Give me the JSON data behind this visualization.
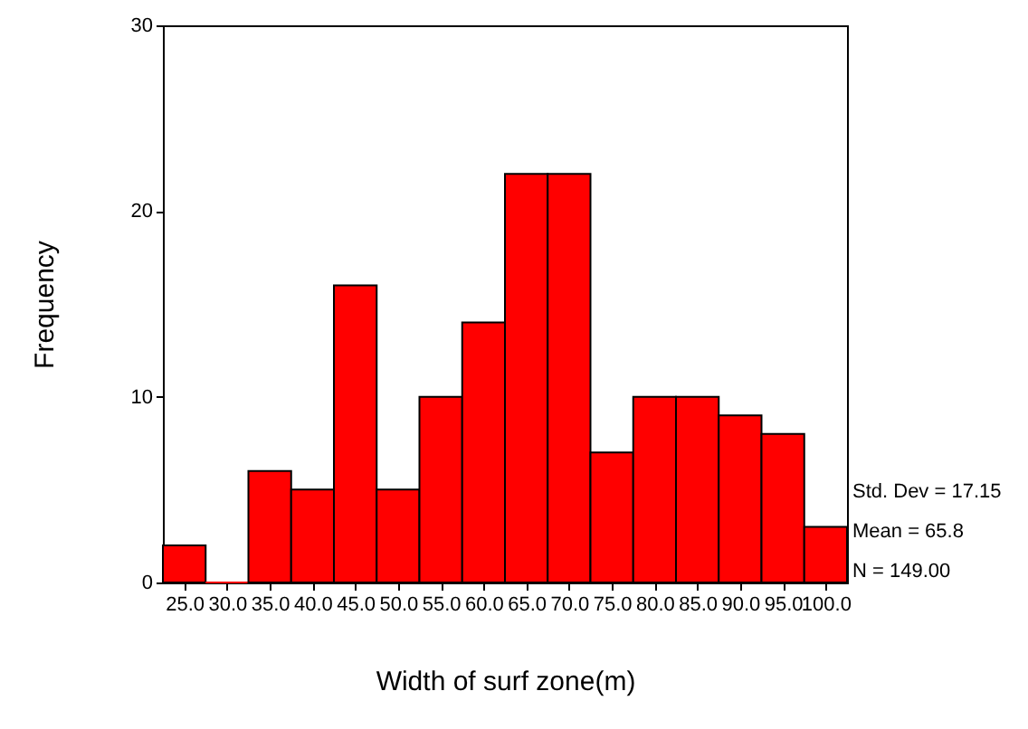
{
  "chart_data": {
    "type": "histogram",
    "xlabel": "Width of surf zone(m)",
    "ylabel": "Frequency",
    "color": "#ff0000",
    "bins": [
      22.5,
      27.5,
      32.5,
      37.5,
      42.5,
      47.5,
      52.5,
      57.5,
      62.5,
      67.5,
      72.5,
      77.5,
      82.5,
      87.5,
      92.5,
      97.5,
      102.5
    ],
    "values": [
      2,
      0,
      6,
      5,
      16,
      5,
      10,
      14,
      22,
      22,
      7,
      10,
      10,
      9,
      8,
      3
    ],
    "xlim": [
      22.5,
      102.5
    ],
    "xticks": [
      {
        "value": 25,
        "label": "25.0"
      },
      {
        "value": 30,
        "label": "30.0"
      },
      {
        "value": 35,
        "label": "35.0"
      },
      {
        "value": 40,
        "label": "40.0"
      },
      {
        "value": 45,
        "label": "45.0"
      },
      {
        "value": 50,
        "label": "50.0"
      },
      {
        "value": 55,
        "label": "55.0"
      },
      {
        "value": 60,
        "label": "60.0"
      },
      {
        "value": 65,
        "label": "65.0"
      },
      {
        "value": 70,
        "label": "70.0"
      },
      {
        "value": 75,
        "label": "75.0"
      },
      {
        "value": 80,
        "label": "80.0"
      },
      {
        "value": 85,
        "label": "85.0"
      },
      {
        "value": 90,
        "label": "90.0"
      },
      {
        "value": 95,
        "label": "95.0"
      },
      {
        "value": 100,
        "label": "100.0"
      }
    ],
    "ylim": [
      0,
      30
    ],
    "yticks": [
      0,
      10,
      20,
      30
    ],
    "annotations": [
      "Std. Dev = 17.15",
      "Mean = 65.8",
      "N = 149.00"
    ]
  }
}
